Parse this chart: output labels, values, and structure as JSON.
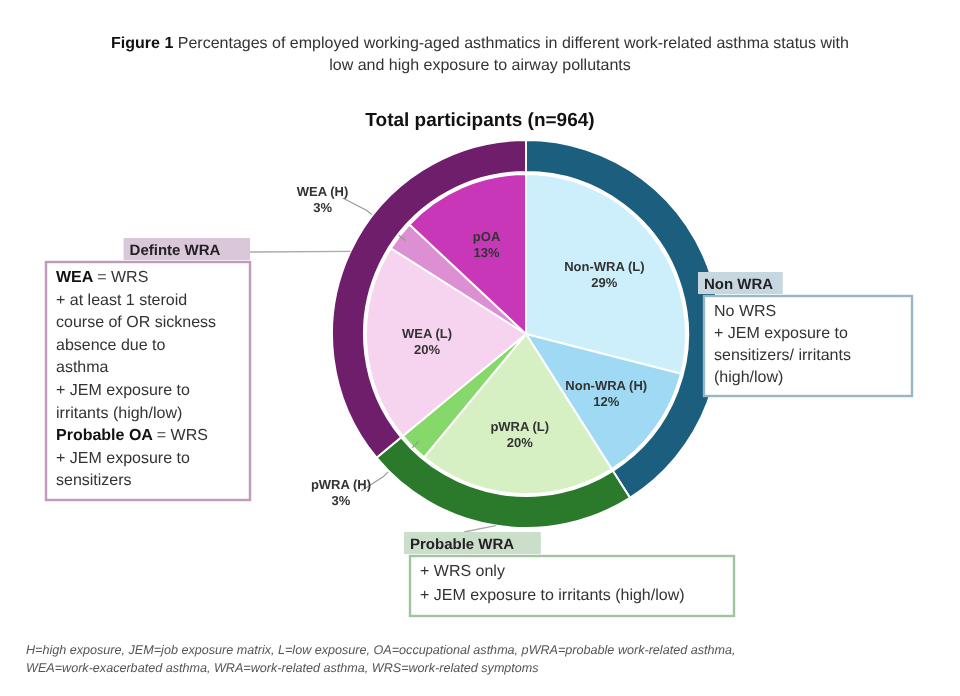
{
  "chart_data": [
    {
      "type": "pie",
      "title": "Figure 1 Percentages of employed working-aged asthmatics in different work-related asthma status with\nlow and high exposure to airway pollutants",
      "subtitle": "Total participants (n=964)",
      "categories": [
        "Non-WRA (L)",
        "Non-WRA (H)",
        "pWRA (L)",
        "pWRA (H)",
        "WEA (L)",
        "WEA (H)",
        "pOA"
      ],
      "values": [
        29,
        12,
        20,
        3,
        20,
        3,
        13
      ],
      "colors": [
        "#cdeefb",
        "#9fd9f4",
        "#d6f0c4",
        "#86d86a",
        "#f6d3ee",
        "#dd8fd3",
        "#c837b8"
      ],
      "value_labels": [
        "29%",
        "12%",
        "20%",
        "3%",
        "20%",
        "3%",
        "13%"
      ],
      "annotations": [
        "H=high exposure, JEM=job exposure matrix, L=low exposure, OA=occupational asthma, pWRA=probable work-related asthma,\nWEA=work-exacerbated asthma, WRA=work-related asthma, WRS=work-related symptoms"
      ]
    },
    {
      "type": "donut",
      "categories": [
        "Non WRA",
        "Probable WRA",
        "Definte WRA"
      ],
      "values": [
        41,
        23,
        36
      ],
      "colors": [
        "#1b5e7e",
        "#2b7a2b",
        "#6e1e6a"
      ],
      "annotations": [
        "No WRS\n+ JEM exposure to\nsensitizers/ irritants\n(high/low)",
        "+ WRS only\n+ JEM exposure to irritants (high/low)",
        "WEA = WRS\n+ at least 1 steroid\ncourse of OR sickness\nabsence due to\nasthma\n+ JEM exposure to\nirritants (high/low)\nProbable OA = WRS\n+ JEM exposure to\nsensitizers"
      ]
    }
  ]
}
